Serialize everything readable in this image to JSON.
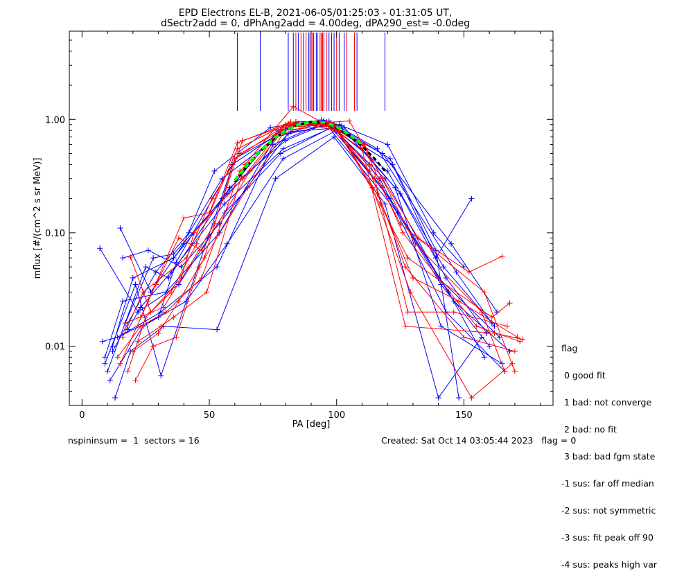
{
  "chart_data": {
    "type": "line",
    "title_line1": "EPD Electrons EL-B, 2021-06-05/01:25:03 - 01:31:05 UT,",
    "title_line2": "dSectr2add = 0, dPhAng2add = 4.00deg, dPA290_est=  -0.0deg",
    "xlabel": "PA [deg]",
    "ylabel": "mflux [#/(cm^2 s sr MeV)]",
    "xlim": [
      -5,
      185
    ],
    "ylim": [
      0.003,
      6
    ],
    "yscale": "log",
    "x_ticks": [
      0,
      50,
      100,
      150
    ],
    "x_tick_labels": [
      "0",
      "50",
      "100",
      "150"
    ],
    "y_ticks": [
      0.01,
      0.1,
      1.0
    ],
    "y_tick_labels": [
      "0.01",
      "0.10",
      "1.00"
    ],
    "colors": {
      "blue": "#0000ff",
      "red": "#ff0000",
      "green": "#00ff00",
      "black": "#000000"
    },
    "series": [
      {
        "color": "blue",
        "x": [
          8,
          14,
          31,
          53,
          75,
          96,
          119,
          140,
          164
        ],
        "y": [
          0.011,
          0.012,
          0.02,
          0.05,
          0.6,
          0.95,
          0.3,
          0.04,
          0.012
        ]
      },
      {
        "color": "blue",
        "x": [
          9,
          16,
          33,
          54,
          76,
          97,
          118,
          141,
          160
        ],
        "y": [
          0.008,
          0.025,
          0.03,
          0.1,
          0.7,
          0.9,
          0.25,
          0.035,
          0.01
        ]
      },
      {
        "color": "blue",
        "x": [
          12,
          20,
          36,
          55,
          77,
          95,
          120,
          142,
          162
        ],
        "y": [
          0.01,
          0.04,
          0.06,
          0.2,
          0.8,
          0.98,
          0.35,
          0.05,
          0.015
        ]
      },
      {
        "color": "blue",
        "x": [
          7,
          22,
          38,
          56,
          78,
          98,
          121,
          144,
          158
        ],
        "y": [
          0.073,
          0.02,
          0.035,
          0.15,
          0.5,
          0.85,
          0.2,
          0.03,
          0.008
        ]
      },
      {
        "color": "blue",
        "x": [
          15,
          27,
          40,
          52,
          74,
          94,
          122,
          139,
          153
        ],
        "y": [
          0.11,
          0.03,
          0.08,
          0.35,
          0.85,
          0.99,
          0.4,
          0.06,
          0.2
        ]
      },
      {
        "color": "blue",
        "x": [
          11,
          24,
          41,
          57,
          79,
          100,
          117,
          143,
          166
        ],
        "y": [
          0.005,
          0.015,
          0.025,
          0.08,
          0.45,
          0.8,
          0.3,
          0.02,
          0.006
        ]
      },
      {
        "color": "blue",
        "x": [
          13,
          19,
          32,
          53,
          76,
          99,
          119,
          140,
          157
        ],
        "y": [
          0.0035,
          0.009,
          0.015,
          0.014,
          0.3,
          0.7,
          0.18,
          0.0035,
          0.012
        ]
      },
      {
        "color": "blue",
        "x": [
          10,
          25,
          34,
          58,
          80,
          96,
          118,
          145,
          163
        ],
        "y": [
          0.006,
          0.05,
          0.04,
          0.25,
          0.65,
          0.92,
          0.5,
          0.08,
          0.02
        ]
      },
      {
        "color": "blue",
        "x": [
          16,
          26,
          39,
          54,
          81,
          95,
          124,
          146,
          168
        ],
        "y": [
          0.06,
          0.07,
          0.05,
          0.12,
          0.75,
          0.96,
          0.15,
          0.025,
          0.009
        ]
      },
      {
        "color": "blue",
        "x": [
          12,
          29,
          42,
          55,
          83,
          102,
          120,
          138,
          150
        ],
        "y": [
          0.009,
          0.045,
          0.1,
          0.3,
          0.9,
          0.88,
          0.6,
          0.1,
          0.05
        ]
      },
      {
        "color": "blue",
        "x": [
          14,
          30,
          37,
          59,
          84,
          97,
          116,
          147,
          161
        ],
        "y": [
          0.012,
          0.018,
          0.055,
          0.4,
          0.95,
          0.97,
          0.55,
          0.045,
          0.016
        ]
      },
      {
        "color": "blue",
        "x": [
          18,
          23,
          35,
          56,
          79,
          101,
          123,
          141,
          165
        ],
        "y": [
          0.014,
          0.022,
          0.045,
          0.18,
          0.55,
          0.9,
          0.25,
          0.015,
          0.007
        ]
      },
      {
        "color": "blue",
        "x": [
          9,
          21,
          31,
          60,
          85,
          99,
          121,
          139,
          148
        ],
        "y": [
          0.007,
          0.035,
          0.0055,
          0.45,
          0.92,
          0.91,
          0.45,
          0.07,
          0.0035
        ]
      },
      {
        "color": "blue",
        "x": [
          17,
          28,
          36,
          57,
          82,
          103,
          125,
          143,
          159
        ],
        "y": [
          0.016,
          0.06,
          0.065,
          0.22,
          0.78,
          0.85,
          0.22,
          0.04,
          0.013
        ]
      },
      {
        "color": "red",
        "x": [
          14,
          23,
          33,
          47,
          62,
          79,
          98,
          115,
          128,
          146,
          167
        ],
        "y": [
          0.008,
          0.015,
          0.02,
          0.04,
          0.35,
          0.85,
          0.9,
          0.3,
          0.02,
          0.02,
          0.015
        ]
      },
      {
        "color": "red",
        "x": [
          18,
          25,
          35,
          45,
          61,
          80,
          97,
          113,
          127,
          150,
          170
        ],
        "y": [
          0.006,
          0.018,
          0.03,
          0.08,
          0.55,
          0.9,
          0.95,
          0.35,
          0.05,
          0.012,
          0.009
        ]
      },
      {
        "color": "red",
        "x": [
          20,
          30,
          38,
          48,
          60,
          81,
          96,
          112,
          126,
          155,
          172
        ],
        "y": [
          0.009,
          0.013,
          0.025,
          0.06,
          0.45,
          0.92,
          0.93,
          0.5,
          0.1,
          0.015,
          0.011
        ]
      },
      {
        "color": "red",
        "x": [
          19,
          27,
          39,
          44,
          63,
          78,
          99,
          114,
          129,
          153,
          169
        ],
        "y": [
          0.061,
          0.02,
          0.04,
          0.1,
          0.3,
          0.8,
          0.88,
          0.25,
          0.03,
          0.0035,
          0.007
        ]
      },
      {
        "color": "red",
        "x": [
          15,
          26,
          40,
          50,
          61,
          82,
          100,
          116,
          130,
          148,
          171
        ],
        "y": [
          0.007,
          0.025,
          0.135,
          0.15,
          0.62,
          0.95,
          0.85,
          0.22,
          0.04,
          0.025,
          0.012
        ]
      },
      {
        "color": "red",
        "x": [
          22,
          31,
          36,
          49,
          64,
          83,
          95,
          111,
          131,
          157,
          166
        ],
        "y": [
          0.011,
          0.015,
          0.018,
          0.03,
          0.4,
          1.3,
          0.92,
          0.6,
          0.08,
          0.02,
          0.006
        ]
      },
      {
        "color": "red",
        "x": [
          16,
          24,
          41,
          51,
          62,
          84,
          101,
          117,
          128,
          161,
          168
        ],
        "y": [
          0.012,
          0.03,
          0.06,
          0.2,
          0.5,
          0.93,
          0.8,
          0.18,
          0.06,
          0.018,
          0.024
        ]
      },
      {
        "color": "red",
        "x": [
          21,
          28,
          37,
          46,
          65,
          79,
          94,
          110,
          127,
          162,
          173
        ],
        "y": [
          0.005,
          0.01,
          0.012,
          0.05,
          0.25,
          0.75,
          0.96,
          0.55,
          0.015,
          0.013,
          0.0115
        ]
      },
      {
        "color": "red",
        "x": [
          17,
          32,
          42,
          52,
          63,
          80,
          105,
          118,
          132,
          152,
          165
        ],
        "y": [
          0.016,
          0.022,
          0.05,
          0.12,
          0.65,
          0.88,
          0.97,
          0.3,
          0.09,
          0.045,
          0.062
        ]
      },
      {
        "color": "red",
        "x": [
          23,
          29,
          38,
          47,
          66,
          81,
          96,
          113,
          125,
          158,
          170
        ],
        "y": [
          0.018,
          0.035,
          0.09,
          0.07,
          0.35,
          0.9,
          0.9,
          0.4,
          0.12,
          0.03,
          0.006
        ]
      }
    ],
    "fit_curves": [
      {
        "color": "black",
        "dashed": true,
        "x": [
          60,
          65,
          70,
          75,
          80,
          85,
          90,
          95,
          100,
          105,
          110,
          115,
          119
        ],
        "y": [
          0.28,
          0.39,
          0.52,
          0.66,
          0.8,
          0.9,
          0.95,
          0.93,
          0.84,
          0.72,
          0.58,
          0.45,
          0.35
        ]
      },
      {
        "color": "green",
        "dashed": true,
        "x": [
          60,
          65,
          70,
          75,
          80,
          85,
          90,
          95,
          100,
          105,
          110
        ],
        "y": [
          0.29,
          0.4,
          0.53,
          0.67,
          0.8,
          0.9,
          0.95,
          0.94,
          0.86,
          0.74,
          0.6
        ]
      }
    ],
    "vlines_blue": [
      61,
      70,
      81,
      83,
      85,
      87,
      89,
      90,
      91,
      92,
      94,
      95,
      97,
      98,
      99,
      101,
      103,
      108,
      119
    ],
    "vlines_red": [
      84,
      86,
      88,
      89.5,
      90.5,
      92.5,
      93.5,
      94.5,
      96,
      100,
      104,
      107
    ],
    "grid": false,
    "legend_position": "bottom-right"
  },
  "legend": {
    "title": "flag",
    "items": [
      " 0 good fit",
      " 1 bad: not converge",
      " 2 bad: no fit",
      " 3 bad: bad fgm state",
      "-1 sus: far off median",
      "-2 sus: not symmetric",
      "-3 sus: fit peak off 90",
      "-4 sus: peaks high var"
    ]
  },
  "footer": {
    "left": "nspininsum =  1  sectors = 16",
    "right": "Created: Sat Oct 14 03:05:44 2023   flag = 0"
  }
}
